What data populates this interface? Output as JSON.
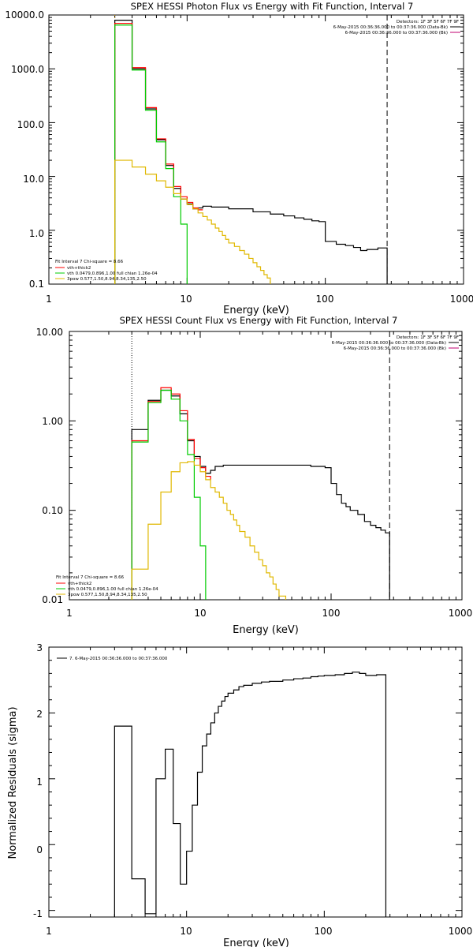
{
  "chart_data": [
    {
      "type": "line",
      "title": "SPEX HESSI Photon Flux vs Energy with Fit Function, Interval 7",
      "xlabel": "Energy (keV)",
      "ylabel": "",
      "xscale": "log",
      "yscale": "log",
      "xlim": [
        1,
        1000
      ],
      "ylim": [
        0.1,
        10000
      ],
      "xticks": [
        "1",
        "10",
        "100",
        "1000"
      ],
      "yticks": [
        "0.1",
        "1.0",
        "10.0",
        "100.0",
        "1000.0",
        "10000.0"
      ],
      "info_lines": [
        {
          "text": "Detectors: 1F 3F 5F 6F 7F 9F",
          "color": ""
        },
        {
          "text": "6-May-2015 00:36:36.000 to 00:37:36.000 (Data-Bk)",
          "color": "#000000"
        },
        {
          "text": "6-May-2015 00:36:36.000 to 00:37:36.000 (Bk)",
          "color": "#c00070"
        }
      ],
      "legend_lines": [
        {
          "text": "Fit Interval 7   Chi-square = 8.66",
          "color": ""
        },
        {
          "text": "vth+thick2",
          "color": "#ff0000"
        },
        {
          "text": "vth 0.0479,0.896,1.00  full chian 1.26e-04",
          "color": "#00cc00"
        },
        {
          "text": "3pow 0.577,1.50,8.94,8.34,135,2.50",
          "color": "#e0b800"
        }
      ],
      "vlines": [
        {
          "x": 3,
          "style": "dotted",
          "color": "#e0a000"
        },
        {
          "x": 280,
          "style": "dashed",
          "color": "#000000"
        }
      ],
      "series": [
        {
          "color": "#000000",
          "steps": [
            [
              3,
              8000
            ],
            [
              4,
              1000
            ],
            [
              5,
              180
            ],
            [
              6,
              48
            ],
            [
              7,
              16
            ],
            [
              8,
              6
            ],
            [
              9,
              3.8
            ],
            [
              10,
              3.1
            ],
            [
              11,
              2.5
            ],
            [
              12,
              2.6
            ],
            [
              13,
              2.8
            ],
            [
              15,
              2.7
            ],
            [
              20,
              2.5
            ],
            [
              30,
              2.2
            ],
            [
              40,
              2.0
            ],
            [
              50,
              1.85
            ],
            [
              60,
              1.7
            ],
            [
              70,
              1.6
            ],
            [
              80,
              1.5
            ],
            [
              90,
              1.45
            ],
            [
              100,
              0.62
            ],
            [
              120,
              0.55
            ],
            [
              140,
              0.52
            ],
            [
              160,
              0.48
            ],
            [
              180,
              0.42
            ],
            [
              200,
              0.44
            ],
            [
              240,
              0.47
            ],
            [
              280,
              0.1
            ]
          ]
        },
        {
          "color": "#ff0000",
          "steps": [
            [
              3,
              7000
            ],
            [
              4,
              1050
            ],
            [
              5,
              190
            ],
            [
              6,
              50
            ],
            [
              7,
              17
            ],
            [
              8,
              6.5
            ],
            [
              9,
              4.2
            ],
            [
              10,
              3.3
            ],
            [
              11,
              2.6
            ],
            [
              12,
              2.4
            ],
            [
              13,
              2.4
            ]
          ]
        },
        {
          "color": "#00cc00",
          "steps": [
            [
              3,
              6500
            ],
            [
              4,
              950
            ],
            [
              5,
              170
            ],
            [
              6,
              44
            ],
            [
              7,
              14
            ],
            [
              8,
              4.2
            ],
            [
              9,
              1.3
            ],
            [
              10,
              0.1
            ]
          ]
        },
        {
          "color": "#e0b800",
          "steps": [
            [
              3,
              20
            ],
            [
              4,
              15
            ],
            [
              5,
              11
            ],
            [
              6,
              8.3
            ],
            [
              7,
              6.3
            ],
            [
              8,
              4.8
            ],
            [
              9,
              3.8
            ],
            [
              10,
              3.0
            ],
            [
              11,
              2.5
            ],
            [
              12,
              2.1
            ],
            [
              13,
              1.8
            ],
            [
              14,
              1.55
            ],
            [
              15,
              1.3
            ],
            [
              16,
              1.1
            ],
            [
              17,
              0.95
            ],
            [
              18,
              0.8
            ],
            [
              19,
              0.68
            ],
            [
              20,
              0.58
            ],
            [
              22,
              0.5
            ],
            [
              24,
              0.42
            ],
            [
              26,
              0.36
            ],
            [
              28,
              0.3
            ],
            [
              30,
              0.25
            ],
            [
              32,
              0.21
            ],
            [
              34,
              0.18
            ],
            [
              36,
              0.15
            ],
            [
              38,
              0.13
            ],
            [
              40,
              0.1
            ]
          ]
        }
      ]
    },
    {
      "type": "line",
      "title": "SPEX HESSI Count Flux vs Energy with Fit Function, Interval 7",
      "xlabel": "Energy (keV)",
      "ylabel": "",
      "xscale": "log",
      "yscale": "log",
      "xlim": [
        1,
        1000
      ],
      "ylim": [
        0.01,
        10
      ],
      "xticks": [
        "1",
        "10",
        "100",
        "1000"
      ],
      "yticks": [
        "0.01",
        "0.10",
        "1.00",
        "10.00"
      ],
      "info_lines": [
        {
          "text": "Detectors: 1F 3F 5F 6F 7F 9F",
          "color": ""
        },
        {
          "text": "6-May-2015 00:36:36.000 to 00:37:36.000 (Data-Bk)",
          "color": "#000000"
        },
        {
          "text": "6-May-2015 00:36:36.000 to 00:37:36.000 (Bk)",
          "color": "#c00070"
        }
      ],
      "legend_lines": [
        {
          "text": "Fit Interval 7   Chi-square = 8.66",
          "color": ""
        },
        {
          "text": "vth+thick2",
          "color": "#ff0000"
        },
        {
          "text": "vth 0.0479,0.896,1.00  full chian 1.26e-04",
          "color": "#00cc00"
        },
        {
          "text": "3pow 0.577,1.50,8.94,8.34,135,2.50",
          "color": "#e0b800"
        }
      ],
      "vlines": [
        {
          "x": 3,
          "style": "dotted",
          "color": "#000000"
        },
        {
          "x": 280,
          "style": "dashed",
          "color": "#000000"
        }
      ],
      "series": [
        {
          "color": "#000000",
          "steps": [
            [
              3,
              0.8
            ],
            [
              4,
              1.7
            ],
            [
              5,
              2.2
            ],
            [
              6,
              1.9
            ],
            [
              7,
              1.2
            ],
            [
              8,
              0.6
            ],
            [
              9,
              0.4
            ],
            [
              10,
              0.31
            ],
            [
              11,
              0.26
            ],
            [
              12,
              0.28
            ],
            [
              13,
              0.31
            ],
            [
              15,
              0.32
            ],
            [
              20,
              0.32
            ],
            [
              30,
              0.32
            ],
            [
              50,
              0.32
            ],
            [
              70,
              0.31
            ],
            [
              90,
              0.3
            ],
            [
              100,
              0.2
            ],
            [
              110,
              0.15
            ],
            [
              120,
              0.12
            ],
            [
              130,
              0.11
            ],
            [
              140,
              0.1
            ],
            [
              160,
              0.09
            ],
            [
              180,
              0.075
            ],
            [
              200,
              0.068
            ],
            [
              220,
              0.064
            ],
            [
              240,
              0.06
            ],
            [
              260,
              0.056
            ],
            [
              280,
              0.01
            ]
          ]
        },
        {
          "color": "#ff0000",
          "steps": [
            [
              3,
              0.6
            ],
            [
              4,
              1.65
            ],
            [
              5,
              2.35
            ],
            [
              6,
              2.0
            ],
            [
              7,
              1.3
            ],
            [
              8,
              0.62
            ],
            [
              9,
              0.38
            ],
            [
              10,
              0.3
            ],
            [
              11,
              0.24
            ],
            [
              12,
              0.22
            ]
          ]
        },
        {
          "color": "#00cc00",
          "steps": [
            [
              3,
              0.58
            ],
            [
              4,
              1.6
            ],
            [
              5,
              2.2
            ],
            [
              6,
              1.75
            ],
            [
              7,
              1.0
            ],
            [
              8,
              0.42
            ],
            [
              9,
              0.14
            ],
            [
              10,
              0.04
            ],
            [
              11,
              0.01
            ]
          ]
        },
        {
          "color": "#e0b800",
          "steps": [
            [
              3,
              0.022
            ],
            [
              4,
              0.07
            ],
            [
              5,
              0.16
            ],
            [
              6,
              0.27
            ],
            [
              7,
              0.34
            ],
            [
              8,
              0.35
            ],
            [
              9,
              0.32
            ],
            [
              10,
              0.27
            ],
            [
              11,
              0.22
            ],
            [
              12,
              0.18
            ],
            [
              13,
              0.16
            ],
            [
              14,
              0.14
            ],
            [
              15,
              0.12
            ],
            [
              16,
              0.1
            ],
            [
              17,
              0.09
            ],
            [
              18,
              0.078
            ],
            [
              19,
              0.068
            ],
            [
              20,
              0.058
            ],
            [
              22,
              0.05
            ],
            [
              24,
              0.04
            ],
            [
              26,
              0.034
            ],
            [
              28,
              0.028
            ],
            [
              30,
              0.024
            ],
            [
              32,
              0.02
            ],
            [
              34,
              0.018
            ],
            [
              36,
              0.015
            ],
            [
              38,
              0.013
            ],
            [
              40,
              0.011
            ],
            [
              45,
              0.01
            ]
          ]
        }
      ]
    },
    {
      "type": "line",
      "title": "",
      "xlabel": "Energy (keV)",
      "ylabel": "Normalized Residuals (sigma)",
      "xscale": "log",
      "yscale": "linear",
      "xlim": [
        1,
        1000
      ],
      "ylim": [
        -1.1,
        3
      ],
      "xticks": [
        "1",
        "10",
        "100",
        "1000"
      ],
      "yticks": [
        "-1",
        "0",
        "1",
        "2",
        "3"
      ],
      "legend_lines": [
        {
          "text": "7.  6-May-2015 00:36:36.000 to 00:37:36.000",
          "color": "#000000"
        }
      ],
      "series": [
        {
          "color": "#000000",
          "steps": [
            [
              3,
              1.8
            ],
            [
              4,
              -0.52
            ],
            [
              5,
              -1.05
            ],
            [
              6,
              1.0
            ],
            [
              7,
              1.45
            ],
            [
              8,
              0.32
            ],
            [
              9,
              -0.6
            ],
            [
              10,
              -0.1
            ],
            [
              11,
              0.6
            ],
            [
              12,
              1.1
            ],
            [
              13,
              1.5
            ],
            [
              14,
              1.68
            ],
            [
              15,
              1.85
            ],
            [
              16,
              2.0
            ],
            [
              17,
              2.1
            ],
            [
              18,
              2.18
            ],
            [
              19,
              2.25
            ],
            [
              20,
              2.3
            ],
            [
              22,
              2.35
            ],
            [
              24,
              2.4
            ],
            [
              26,
              2.42
            ],
            [
              30,
              2.45
            ],
            [
              35,
              2.47
            ],
            [
              40,
              2.48
            ],
            [
              50,
              2.5
            ],
            [
              60,
              2.52
            ],
            [
              70,
              2.53
            ],
            [
              80,
              2.55
            ],
            [
              90,
              2.56
            ],
            [
              100,
              2.57
            ],
            [
              120,
              2.58
            ],
            [
              140,
              2.6
            ],
            [
              160,
              2.62
            ],
            [
              180,
              2.6
            ],
            [
              200,
              2.57
            ],
            [
              240,
              2.58
            ],
            [
              280,
              -1.1
            ]
          ]
        }
      ]
    }
  ]
}
